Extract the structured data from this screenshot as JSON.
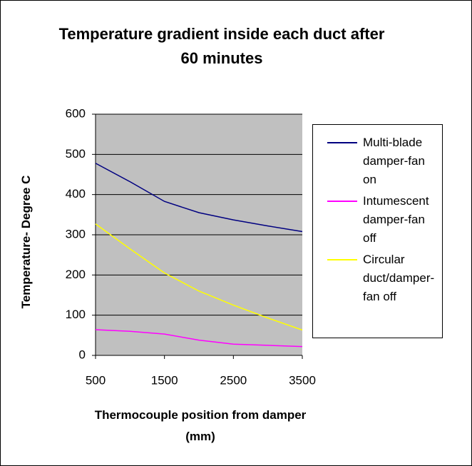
{
  "chart_data": {
    "type": "line",
    "title": "Temperature gradient inside each duct after 60 minutes",
    "xlabel": "Thermocouple position from damper (mm)",
    "ylabel": "Temperature- Degree C",
    "x": [
      500,
      1000,
      1500,
      2000,
      2500,
      3000,
      3500
    ],
    "series": [
      {
        "name": "Multi-blade damper-fan on",
        "color": "#000080",
        "values": [
          478,
          432,
          383,
          355,
          337,
          322,
          308
        ]
      },
      {
        "name": "Intumescent damper-fan off",
        "color": "#ff00ff",
        "values": [
          64,
          60,
          53,
          38,
          28,
          25,
          22
        ]
      },
      {
        "name": "Circular duct/damper-fan off",
        "color": "#ffff00",
        "values": [
          327,
          265,
          205,
          160,
          125,
          93,
          63
        ]
      }
    ],
    "xlim": [
      500,
      3500
    ],
    "xticks": [
      500,
      1500,
      2500,
      3500
    ],
    "ylim": [
      0,
      600
    ],
    "yticks": [
      0,
      100,
      200,
      300,
      400,
      500,
      600
    ],
    "grid": true,
    "plot_background": "#c0c0c0",
    "legend": "right"
  }
}
